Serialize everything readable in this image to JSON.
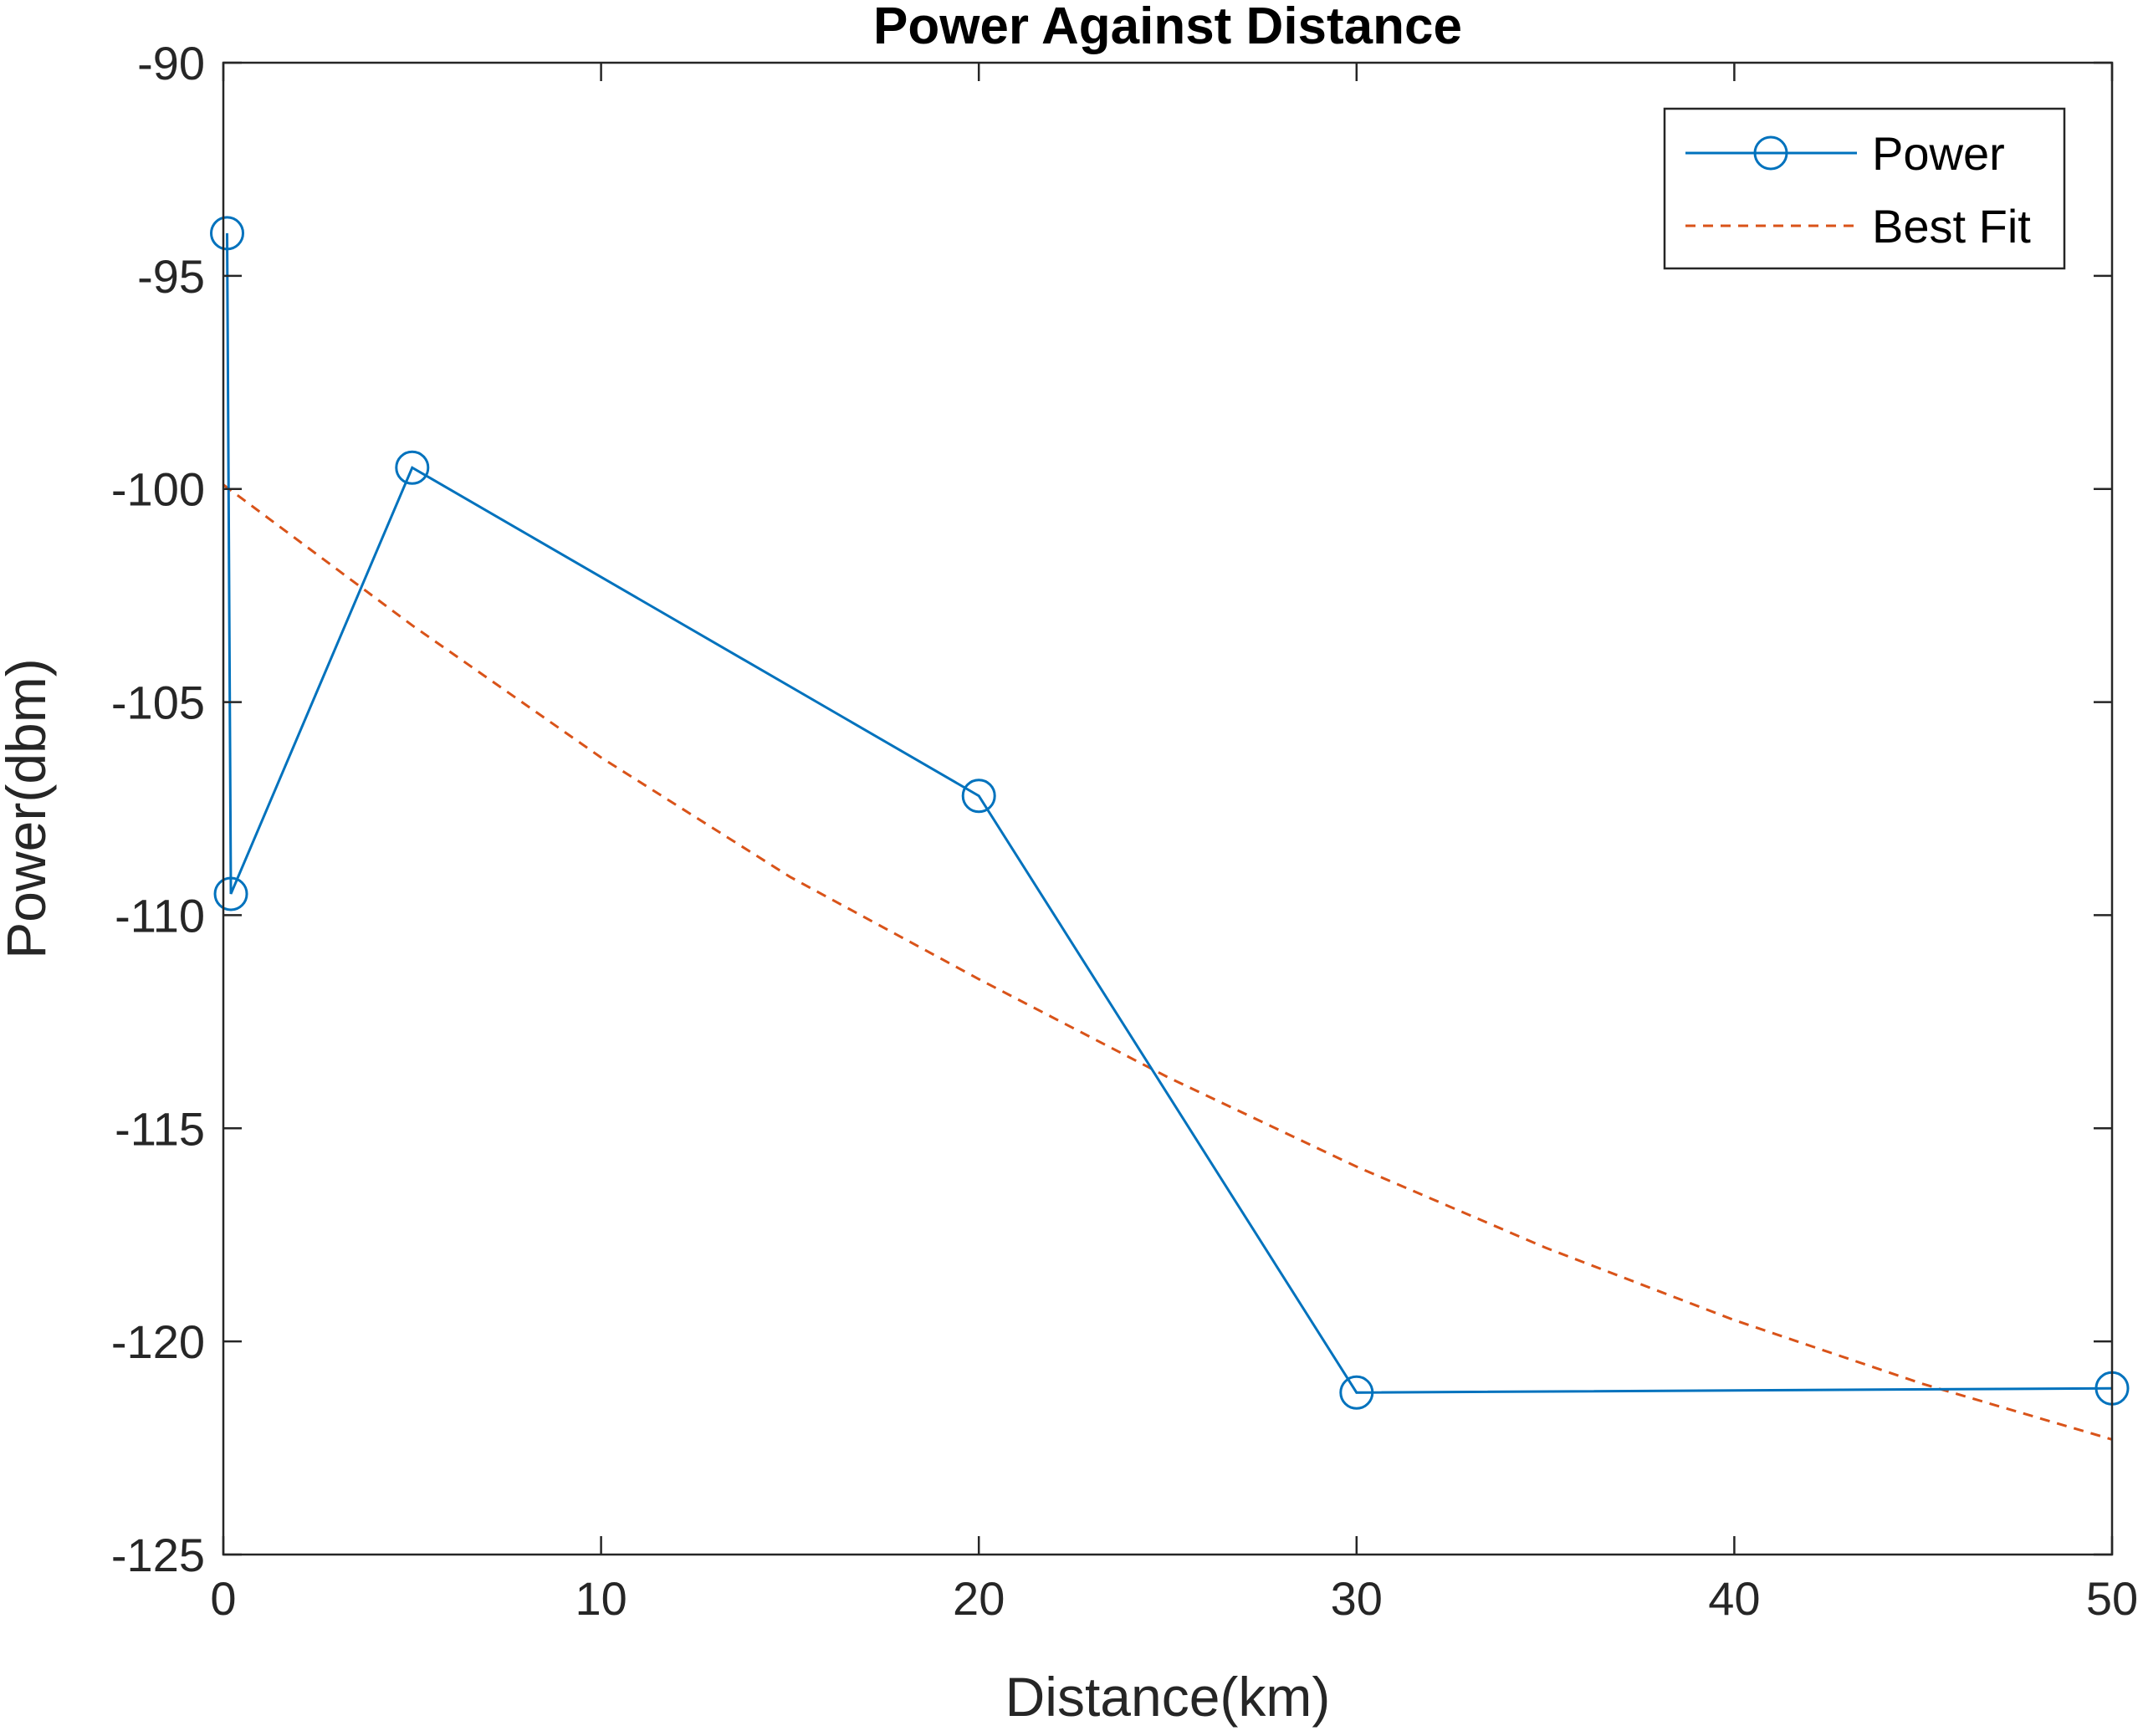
{
  "chart_data": {
    "type": "line",
    "title": "Power Against Distance",
    "xlabel": "Distance(km)",
    "ylabel": "Power(dbm)",
    "xlim": [
      0,
      50
    ],
    "ylim": [
      -125,
      -90
    ],
    "xticks": [
      0,
      10,
      20,
      30,
      40,
      50
    ],
    "yticks": [
      -125,
      -120,
      -115,
      -110,
      -105,
      -100,
      -95,
      -90
    ],
    "grid": false,
    "legend_position": "top-right",
    "series": [
      {
        "name": "Power",
        "style": "solid-circle-markers",
        "color": "#0072BD",
        "x": [
          0.1,
          0.2,
          5,
          20,
          30,
          50
        ],
        "y": [
          -94,
          -109.5,
          -99.5,
          -107.2,
          -121.2,
          -121.1
        ]
      },
      {
        "name": "Best Fit",
        "style": "dashed",
        "color": "#D95319",
        "x": [
          0,
          5,
          10,
          15,
          20,
          25,
          30,
          35,
          40,
          45,
          50
        ],
        "y": [
          -99.9,
          -103.2,
          -106.3,
          -109.1,
          -111.5,
          -113.8,
          -115.9,
          -117.8,
          -119.5,
          -121.0,
          -122.3
        ]
      }
    ]
  }
}
